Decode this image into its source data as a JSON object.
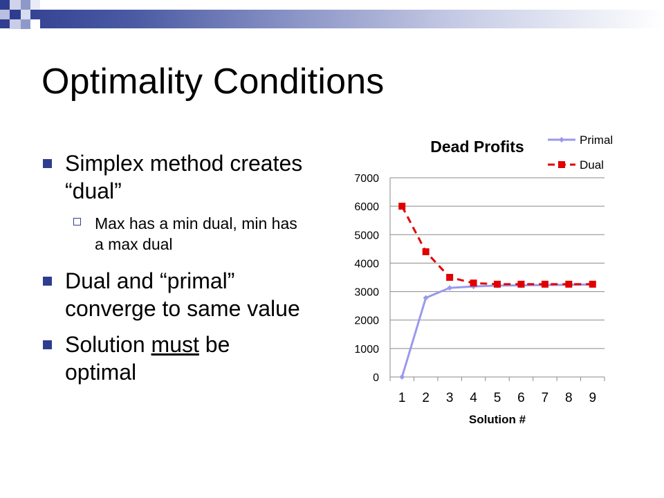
{
  "slide": {
    "title": "Optimality Conditions",
    "bullets": [
      {
        "text": "Simplex method creates “dual”",
        "sub": "Max has a min dual, min has a max dual"
      },
      {
        "text": "Dual and “primal” converge to same value"
      },
      {
        "pre": "Solution ",
        "emph": "must",
        "post": " be optimal"
      }
    ]
  },
  "colors": {
    "accent": "#2e3d8f",
    "primal": "#9999ee",
    "dual": "#e00000"
  },
  "chart_data": {
    "type": "line",
    "title": "Dead Profits",
    "xlabel": "Solution #",
    "ylabel": "",
    "categories": [
      "1",
      "2",
      "3",
      "4",
      "5",
      "6",
      "7",
      "8",
      "9"
    ],
    "ylim": [
      0,
      7000
    ],
    "yticks": [
      "0",
      "1000",
      "2000",
      "3000",
      "4000",
      "5000",
      "6000",
      "7000"
    ],
    "grid": "horizontal",
    "legend": "top-right",
    "series": [
      {
        "name": "Primal",
        "values": [
          0,
          2780,
          3130,
          3180,
          3210,
          3220,
          3230,
          3240,
          3250
        ]
      },
      {
        "name": "Dual",
        "values": [
          6000,
          4400,
          3500,
          3300,
          3260,
          3260,
          3260,
          3260,
          3260
        ]
      }
    ]
  }
}
